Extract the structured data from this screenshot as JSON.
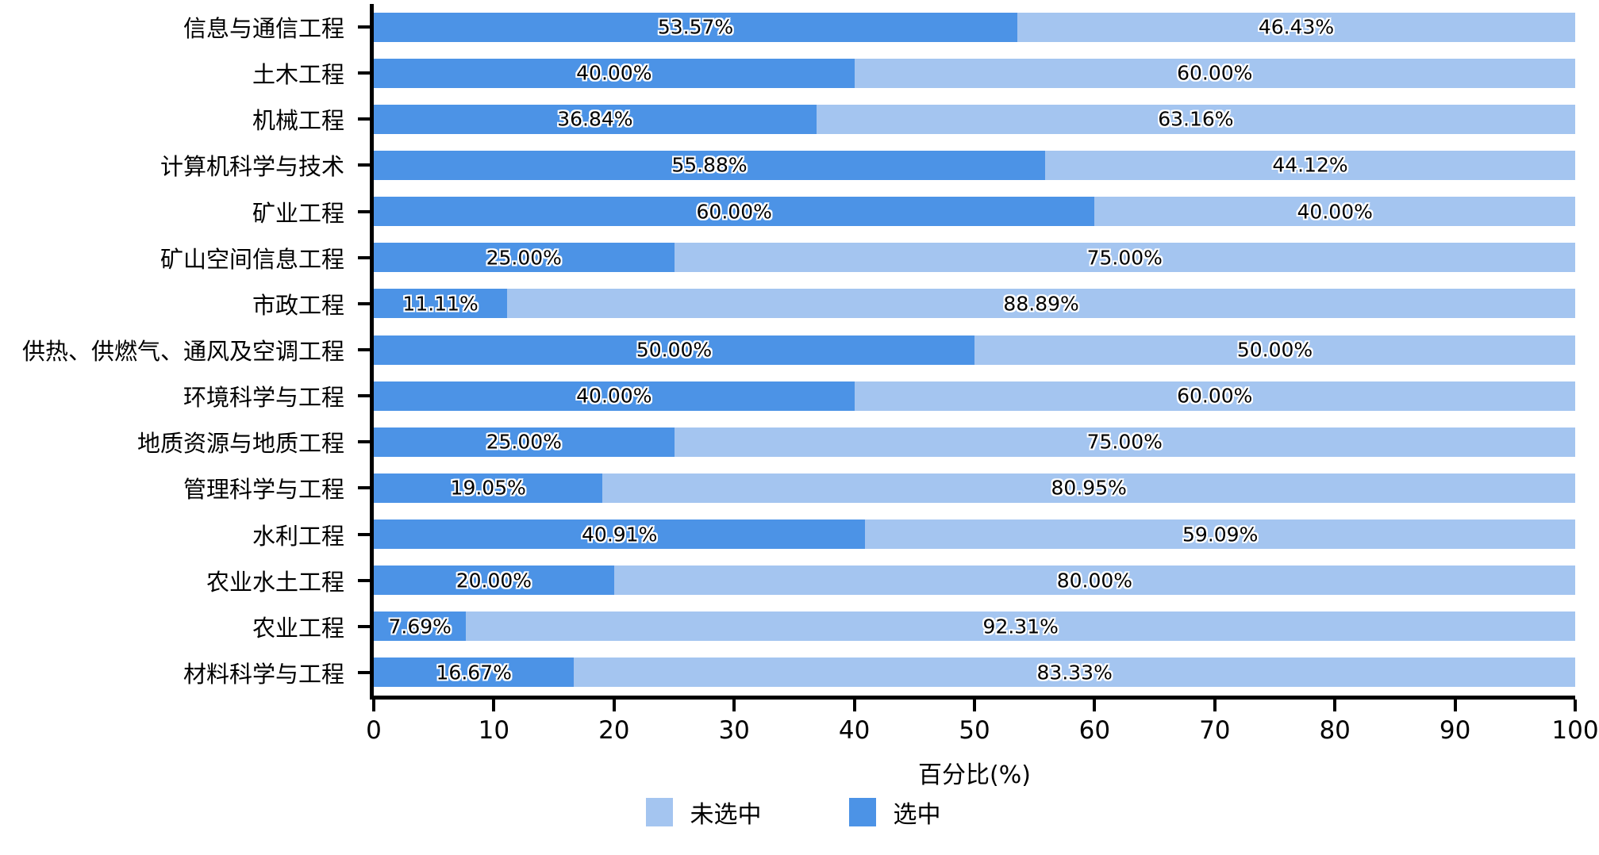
{
  "chart_data": {
    "type": "bar",
    "orientation": "horizontal",
    "stacked": true,
    "unit": "%",
    "categories": [
      "信息与通信工程",
      "土木工程",
      "机械工程",
      "计算机科学与技术",
      "矿业工程",
      "矿山空间信息工程",
      "市政工程",
      "供热、供燃气、通风及空调工程",
      "环境科学与工程",
      "地质资源与地质工程",
      "管理科学与工程",
      "水利工程",
      "农业水土工程",
      "农业工程",
      "材料科学与工程"
    ],
    "series": [
      {
        "name": "选中",
        "color": "#4c93e6",
        "values": [
          53.57,
          40.0,
          36.84,
          55.88,
          60.0,
          25.0,
          11.11,
          50.0,
          40.0,
          25.0,
          19.05,
          40.91,
          20.0,
          7.69,
          16.67
        ],
        "labels": [
          "53.57%",
          "40.00%",
          "36.84%",
          "55.88%",
          "60.00%",
          "25.00%",
          "11.11%",
          "50.00%",
          "40.00%",
          "25.00%",
          "19.05%",
          "40.91%",
          "20.00%",
          "7.69%",
          "16.67%"
        ]
      },
      {
        "name": "未选中",
        "color": "#a4c5f0",
        "values": [
          46.43,
          60.0,
          63.16,
          44.12,
          40.0,
          75.0,
          88.89,
          50.0,
          60.0,
          75.0,
          80.95,
          59.09,
          80.0,
          92.31,
          83.33
        ],
        "labels": [
          "46.43%",
          "60.00%",
          "63.16%",
          "44.12%",
          "40.00%",
          "75.00%",
          "88.89%",
          "50.00%",
          "60.00%",
          "75.00%",
          "80.95%",
          "59.09%",
          "80.00%",
          "92.31%",
          "83.33%"
        ]
      }
    ],
    "xlabel": "百分比(%)",
    "xlim": [
      0,
      100
    ],
    "xticks": [
      "0",
      "10",
      "20",
      "30",
      "40",
      "50",
      "60",
      "70",
      "80",
      "90",
      "100"
    ],
    "grid": false,
    "legend": {
      "position": "bottom",
      "entries": [
        {
          "label": "未选中",
          "color": "#a4c5f0"
        },
        {
          "label": "选中",
          "color": "#4c93e6"
        }
      ]
    },
    "axis_color": "#000000",
    "label_halo_color": "#ffffff"
  }
}
